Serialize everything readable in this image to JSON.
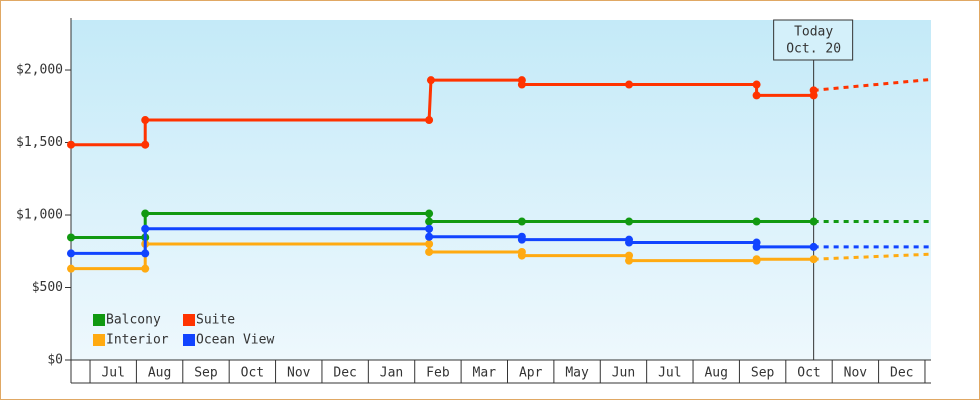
{
  "chart_data": {
    "type": "line",
    "ylim": [
      0,
      2345
    ],
    "yticks": [
      {
        "value": 0,
        "label": "$0"
      },
      {
        "value": 500,
        "label": "$500"
      },
      {
        "value": 1000,
        "label": "$1,000"
      },
      {
        "value": 1500,
        "label": "$1,500"
      },
      {
        "value": 2000,
        "label": "$2,000"
      }
    ],
    "xlim": [
      -0.41,
      18.13
    ],
    "xticks": [
      {
        "value": 0.5,
        "label": "Jul"
      },
      {
        "value": 1.5,
        "label": "Aug"
      },
      {
        "value": 2.5,
        "label": "Sep"
      },
      {
        "value": 3.5,
        "label": "Oct"
      },
      {
        "value": 4.5,
        "label": "Nov"
      },
      {
        "value": 5.5,
        "label": "Dec"
      },
      {
        "value": 6.5,
        "label": "Jan"
      },
      {
        "value": 7.5,
        "label": "Feb"
      },
      {
        "value": 8.5,
        "label": "Mar"
      },
      {
        "value": 9.5,
        "label": "Apr"
      },
      {
        "value": 10.5,
        "label": "May"
      },
      {
        "value": 11.5,
        "label": "Jun"
      },
      {
        "value": 12.5,
        "label": "Jul"
      },
      {
        "value": 13.5,
        "label": "Aug"
      },
      {
        "value": 14.5,
        "label": "Sep"
      },
      {
        "value": 15.5,
        "label": "Oct"
      },
      {
        "value": 16.5,
        "label": "Nov"
      },
      {
        "value": 17.5,
        "label": "Dec"
      }
    ],
    "annotation": {
      "x": 15.6,
      "lines": [
        "Today",
        "Oct. 20"
      ]
    },
    "legend": "lower left",
    "series": [
      {
        "name": "Balcony",
        "color": "#119911",
        "x": [
          -0.41,
          1.19,
          1.19,
          7.31,
          7.31,
          9.31,
          11.62,
          14.37,
          15.6
        ],
        "values": [
          845,
          845,
          1010,
          1010,
          955,
          955,
          955,
          955,
          955
        ],
        "projection_x": [
          15.6,
          18.13
        ],
        "projection_values": [
          955,
          955
        ]
      },
      {
        "name": "Suite",
        "color": "#ff3300",
        "x": [
          -0.41,
          1.19,
          1.19,
          7.31,
          7.35,
          9.31,
          9.31,
          11.62,
          14.37,
          14.37,
          15.6,
          15.6
        ],
        "values": [
          1485,
          1485,
          1655,
          1655,
          1930,
          1930,
          1900,
          1900,
          1900,
          1825,
          1825,
          1860
        ],
        "projection_x": [
          15.6,
          18.13
        ],
        "projection_values": [
          1860,
          1935
        ]
      },
      {
        "name": "Interior",
        "color": "#ffaa11",
        "x": [
          -0.41,
          1.19,
          1.19,
          7.31,
          7.31,
          9.31,
          9.31,
          11.62,
          11.62,
          14.37,
          14.37,
          15.6
        ],
        "values": [
          630,
          630,
          800,
          800,
          745,
          745,
          720,
          720,
          685,
          685,
          695,
          695
        ],
        "projection_x": [
          15.6,
          18.13
        ],
        "projection_values": [
          695,
          730
        ]
      },
      {
        "name": "Ocean View",
        "color": "#1144ff",
        "x": [
          -0.41,
          1.19,
          1.19,
          7.31,
          7.31,
          9.31,
          9.31,
          11.62,
          11.62,
          14.37,
          14.37,
          15.6
        ],
        "values": [
          735,
          735,
          905,
          905,
          850,
          850,
          830,
          830,
          810,
          810,
          780,
          780
        ],
        "projection_x": [
          15.6,
          18.13
        ],
        "projection_values": [
          780,
          780
        ]
      }
    ]
  }
}
